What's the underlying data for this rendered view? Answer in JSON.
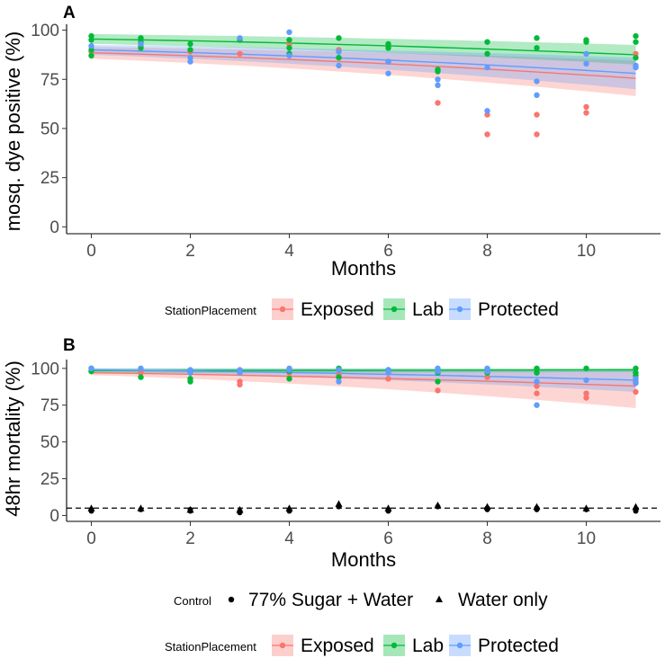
{
  "chart_data": [
    {
      "panel": "A",
      "type": "scatter",
      "xlabel": "Months",
      "ylabel": "mosq. dye positive (%)",
      "xlim": [
        -0.5,
        11.5
      ],
      "ylim": [
        -3.5,
        103
      ],
      "xticks": [
        0,
        2,
        4,
        6,
        8,
        10
      ],
      "yticks": [
        0,
        25,
        50,
        75,
        100
      ],
      "series": [
        {
          "name": "Exposed",
          "color": "#F8766D",
          "fit": {
            "start": 88.5,
            "end": 75.5
          },
          "band_start": [
            85.5,
            91.5
          ],
          "band_end": [
            66.5,
            84.5
          ],
          "points": [
            [
              0,
              89
            ],
            [
              1,
              92
            ],
            [
              2,
              89
            ],
            [
              3,
              88
            ],
            [
              4,
              93
            ],
            [
              5,
              90
            ],
            [
              6,
              84
            ],
            [
              7,
              63
            ],
            [
              8,
              57
            ],
            [
              8,
              47
            ],
            [
              9,
              57
            ],
            [
              9,
              47
            ],
            [
              10,
              61
            ],
            [
              10,
              58
            ],
            [
              11,
              88
            ]
          ]
        },
        {
          "name": "Lab",
          "color": "#00BA38",
          "fit": {
            "start": 95.5,
            "end": 87.5
          },
          "band_start": [
            93,
            98
          ],
          "band_end": [
            82.5,
            92.5
          ],
          "points": [
            [
              0,
              97
            ],
            [
              0,
              95
            ],
            [
              0,
              90
            ],
            [
              0,
              87
            ],
            [
              1,
              96
            ],
            [
              1,
              94
            ],
            [
              1,
              91
            ],
            [
              2,
              93
            ],
            [
              2,
              90
            ],
            [
              3,
              95
            ],
            [
              4,
              95
            ],
            [
              4,
              91
            ],
            [
              4,
              88
            ],
            [
              5,
              96
            ],
            [
              5,
              86
            ],
            [
              6,
              93
            ],
            [
              6,
              91
            ],
            [
              7,
              80
            ],
            [
              7,
              79
            ],
            [
              8,
              94
            ],
            [
              8,
              88
            ],
            [
              9,
              96
            ],
            [
              9,
              91
            ],
            [
              10,
              95
            ],
            [
              10,
              94
            ],
            [
              11,
              97
            ],
            [
              11,
              94
            ],
            [
              11,
              86
            ]
          ]
        },
        {
          "name": "Protected",
          "color": "#619CFF",
          "fit": {
            "start": 90,
            "end": 78
          },
          "band_start": [
            87.5,
            92.5
          ],
          "band_end": [
            70,
            86
          ],
          "points": [
            [
              0,
              92
            ],
            [
              1,
              93
            ],
            [
              2,
              86
            ],
            [
              2,
              84
            ],
            [
              3,
              96
            ],
            [
              4,
              99
            ],
            [
              4,
              87
            ],
            [
              5,
              89
            ],
            [
              5,
              82
            ],
            [
              6,
              84
            ],
            [
              6,
              78
            ],
            [
              7,
              75
            ],
            [
              7,
              72
            ],
            [
              8,
              81
            ],
            [
              8,
              59
            ],
            [
              9,
              74
            ],
            [
              9,
              67
            ],
            [
              10,
              88
            ],
            [
              10,
              83
            ],
            [
              11,
              82
            ],
            [
              11,
              81
            ]
          ]
        }
      ],
      "legend": {
        "title": "StationPlacement",
        "entries": [
          "Exposed",
          "Lab",
          "Protected"
        ]
      }
    },
    {
      "panel": "B",
      "type": "scatter",
      "xlabel": "Months",
      "ylabel": "48hr mortality (%)",
      "xlim": [
        -0.5,
        11.5
      ],
      "ylim": [
        -4,
        106
      ],
      "xticks": [
        0,
        2,
        4,
        6,
        8,
        10
      ],
      "yticks": [
        0,
        25,
        50,
        75,
        100
      ],
      "reference_line": 5,
      "series": [
        {
          "name": "Exposed",
          "color": "#F8766D",
          "fit": {
            "start": 97,
            "end": 88
          },
          "band_start": [
            95.5,
            98.5
          ],
          "band_end": [
            73,
            98
          ],
          "points": [
            [
              0,
              98
            ],
            [
              1,
              97
            ],
            [
              2,
              97
            ],
            [
              3,
              91
            ],
            [
              3,
              89
            ],
            [
              4,
              97
            ],
            [
              5,
              96
            ],
            [
              6,
              93
            ],
            [
              7,
              85
            ],
            [
              8,
              94
            ],
            [
              9,
              88
            ],
            [
              9,
              83
            ],
            [
              10,
              83
            ],
            [
              10,
              80
            ],
            [
              11,
              91
            ],
            [
              11,
              84
            ]
          ]
        },
        {
          "name": "Lab",
          "color": "#00BA38",
          "fit": {
            "start": 98.5,
            "end": 99
          },
          "band_start": [
            97,
            100
          ],
          "band_end": [
            97.5,
            100
          ],
          "points": [
            [
              0,
              100
            ],
            [
              0,
              98
            ],
            [
              1,
              94
            ],
            [
              2,
              98
            ],
            [
              2,
              93
            ],
            [
              2,
              91
            ],
            [
              3,
              98
            ],
            [
              4,
              98
            ],
            [
              4,
              93
            ],
            [
              5,
              100
            ],
            [
              5,
              94
            ],
            [
              6,
              99
            ],
            [
              7,
              97
            ],
            [
              7,
              91
            ],
            [
              8,
              99
            ],
            [
              8,
              97
            ],
            [
              9,
              100
            ],
            [
              9,
              97
            ],
            [
              10,
              100
            ],
            [
              11,
              100
            ],
            [
              11,
              97
            ],
            [
              11,
              95
            ]
          ]
        },
        {
          "name": "Protected",
          "color": "#619CFF",
          "fit": {
            "start": 99,
            "end": 92
          },
          "band_start": [
            98,
            100
          ],
          "band_end": [
            84,
            99
          ],
          "points": [
            [
              0,
              100
            ],
            [
              1,
              100
            ],
            [
              2,
              99
            ],
            [
              2,
              97
            ],
            [
              3,
              99
            ],
            [
              3,
              97
            ],
            [
              4,
              100
            ],
            [
              4,
              99
            ],
            [
              5,
              99
            ],
            [
              5,
              91
            ],
            [
              6,
              99
            ],
            [
              6,
              97
            ],
            [
              7,
              100
            ],
            [
              7,
              98
            ],
            [
              8,
              100
            ],
            [
              8,
              98
            ],
            [
              9,
              91
            ],
            [
              9,
              75
            ],
            [
              10,
              92
            ],
            [
              11,
              93
            ],
            [
              11,
              90
            ]
          ]
        }
      ],
      "control": {
        "sugar_water": [
          [
            0,
            3
          ],
          [
            0,
            4
          ],
          [
            1,
            4
          ],
          [
            2,
            4
          ],
          [
            2,
            3
          ],
          [
            3,
            3
          ],
          [
            3,
            2
          ],
          [
            4,
            4
          ],
          [
            4,
            3
          ],
          [
            5,
            6
          ],
          [
            6,
            4
          ],
          [
            6,
            3
          ],
          [
            7,
            6
          ],
          [
            8,
            5
          ],
          [
            8,
            4
          ],
          [
            9,
            5
          ],
          [
            9,
            4
          ],
          [
            10,
            4
          ],
          [
            11,
            4
          ],
          [
            11,
            3
          ]
        ],
        "water_only": [
          [
            0,
            5
          ],
          [
            1,
            5
          ],
          [
            2,
            4
          ],
          [
            3,
            4
          ],
          [
            4,
            5
          ],
          [
            5,
            8
          ],
          [
            6,
            5
          ],
          [
            7,
            7
          ],
          [
            8,
            6
          ],
          [
            9,
            6
          ],
          [
            10,
            5
          ],
          [
            11,
            6
          ]
        ]
      },
      "legend_control": {
        "title": "Control",
        "entries": [
          "77% Sugar + Water",
          "Water only"
        ]
      },
      "legend": {
        "title": "StationPlacement",
        "entries": [
          "Exposed",
          "Lab",
          "Protected"
        ]
      }
    }
  ]
}
